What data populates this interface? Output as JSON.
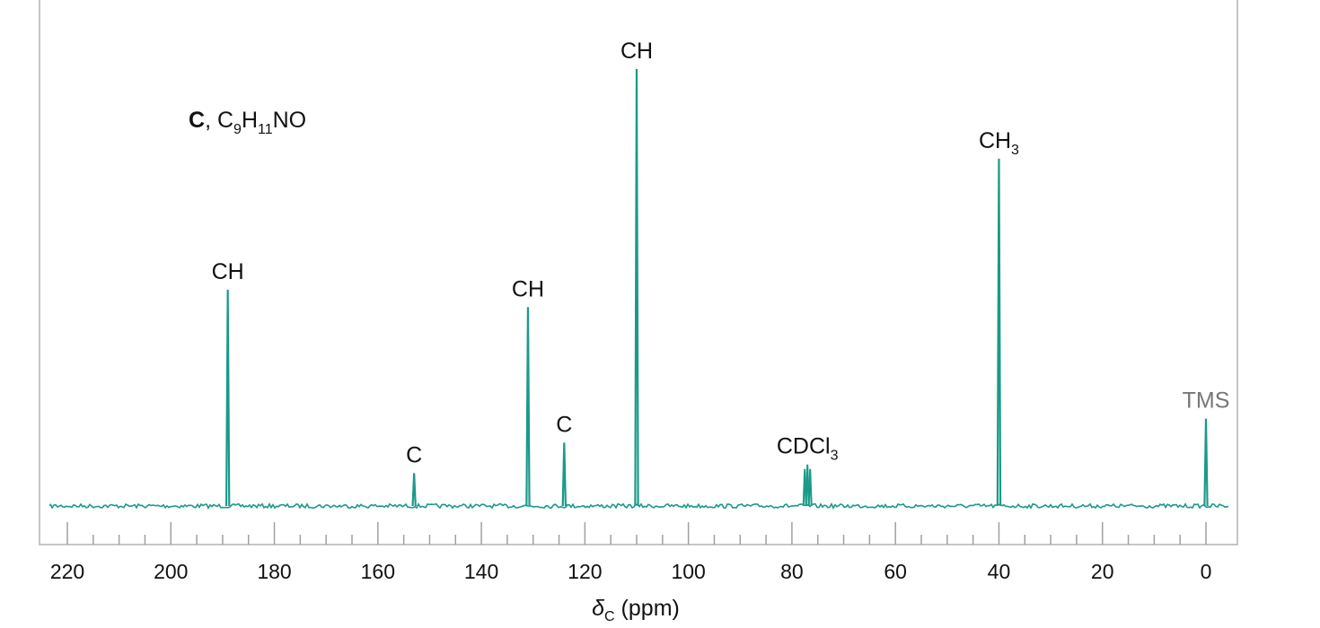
{
  "chart_data": {
    "type": "line",
    "title": "",
    "compound": {
      "letter": "C",
      "separator": ", ",
      "formula_parts": [
        {
          "text": "C",
          "sub": "9"
        },
        {
          "text": "H",
          "sub": "11"
        },
        {
          "text": "NO",
          "sub": ""
        }
      ]
    },
    "xlabel": {
      "symbol": "δ",
      "subscript": "C",
      "unit": " (ppm)"
    },
    "xlim": [
      222,
      -4
    ],
    "x_reversed": true,
    "major_ticks": [
      220,
      200,
      180,
      160,
      140,
      120,
      100,
      80,
      60,
      40,
      20,
      0
    ],
    "tick_labels": [
      "220",
      "200",
      "180",
      "160",
      "140",
      "120",
      "100",
      "80",
      "60",
      "40",
      "20",
      "0"
    ],
    "minor_tick_step": 5,
    "ylim": [
      0,
      1
    ],
    "grid": false,
    "peaks": [
      {
        "shift": 189.0,
        "height": 0.495,
        "label": "CH",
        "sub": ""
      },
      {
        "shift": 153.0,
        "height": 0.075,
        "label": "C",
        "sub": ""
      },
      {
        "shift": 131.0,
        "height": 0.455,
        "label": "CH",
        "sub": ""
      },
      {
        "shift": 124.0,
        "height": 0.145,
        "label": "C",
        "sub": ""
      },
      {
        "shift": 110.0,
        "height": 1.0,
        "label": "CH",
        "sub": ""
      },
      {
        "shift": 77.0,
        "height": 0.095,
        "label": "CDCl",
        "sub": "3",
        "triplet": true
      },
      {
        "shift": 40.0,
        "height": 0.795,
        "label": "CH",
        "sub": "3"
      },
      {
        "shift": 0.0,
        "height": 0.2,
        "label": "TMS",
        "sub": "",
        "reference": true
      }
    ],
    "colors": {
      "trace": "#1a9a8a",
      "frame": "#b3b3b3",
      "ticks": "#a0a0a0",
      "reference_label": "#777777"
    }
  }
}
